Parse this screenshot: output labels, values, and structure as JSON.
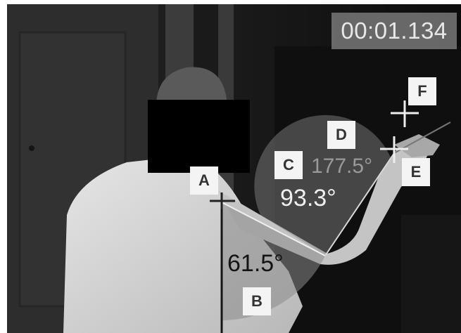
{
  "overlay": {
    "timestamp": "00:01.134",
    "markers": {
      "a": "A",
      "b": "B",
      "c": "C",
      "d": "D",
      "e": "E",
      "f": "F"
    },
    "angles": {
      "a": "61.5°",
      "c": "93.3°",
      "d": "177.5°"
    }
  },
  "colors": {
    "overlay_box": "#f4f4f4",
    "angle_sector": "#8a8a8a"
  }
}
